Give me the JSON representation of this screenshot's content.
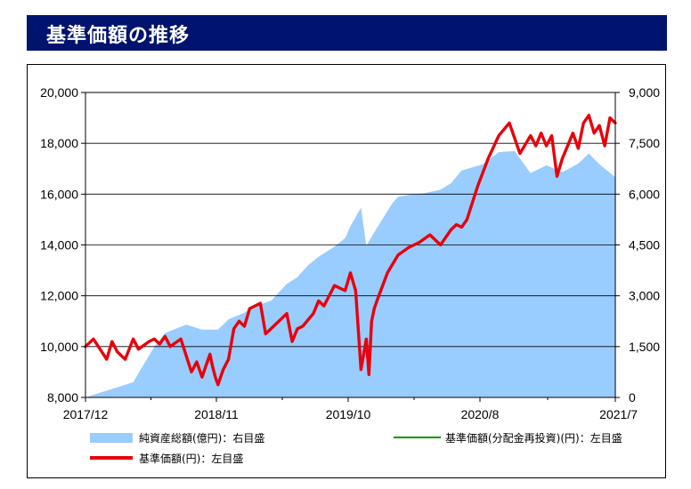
{
  "header": {
    "title": "基準価額の推移"
  },
  "chart_data": {
    "type": "line",
    "x_tick_labels": [
      "2017/12",
      "2018/11",
      "2019/10",
      "2020/8",
      "2021/7"
    ],
    "y_left": {
      "ticks": [
        8000,
        10000,
        12000,
        14000,
        16000,
        18000,
        20000
      ],
      "tick_labels": [
        "8,000",
        "10,000",
        "12,000",
        "14,000",
        "16,000",
        "18,000",
        "20,000"
      ],
      "range": [
        8000,
        20000
      ]
    },
    "y_right": {
      "ticks": [
        0,
        1500,
        3000,
        4500,
        6000,
        7500,
        9000
      ],
      "tick_labels": [
        "0",
        "1,500",
        "3,000",
        "4,500",
        "6,000",
        "7,500",
        "9,000"
      ],
      "range": [
        0,
        9000
      ]
    },
    "grid": true,
    "legend_position": "bottom",
    "series": [
      {
        "name": "純資産総額(億円)：右目盛",
        "axis": "right",
        "type": "area",
        "color": "#99ccff",
        "x": [
          0,
          0.03,
          0.09,
          0.13,
          0.15,
          0.19,
          0.22,
          0.25,
          0.27,
          0.3,
          0.32,
          0.35,
          0.38,
          0.4,
          0.42,
          0.44,
          0.47,
          0.49,
          0.5,
          0.52,
          0.53,
          0.55,
          0.58,
          0.59,
          0.62,
          0.64,
          0.67,
          0.69,
          0.71,
          0.75,
          0.78,
          0.81,
          0.84,
          0.87,
          0.9,
          0.93,
          0.95,
          0.97,
          1.0
        ],
        "values": [
          0,
          150,
          450,
          1500,
          1900,
          2150,
          2000,
          2000,
          2300,
          2500,
          2700,
          2850,
          3350,
          3550,
          3900,
          4150,
          4450,
          4700,
          5050,
          5600,
          4480,
          5000,
          5750,
          5920,
          6000,
          6030,
          6130,
          6320,
          6700,
          6880,
          7240,
          7270,
          6620,
          6850,
          6650,
          6900,
          7200,
          6880,
          6500
        ]
      },
      {
        "name": "基準価額(分配金再投資)(円)：左目盛",
        "axis": "left",
        "type": "line",
        "color": "#009900",
        "x": [],
        "values": []
      },
      {
        "name": "基準価額(円)：左目盛",
        "axis": "left",
        "type": "line",
        "color": "#e8000a",
        "x": [
          0,
          0.015,
          0.04,
          0.05,
          0.06,
          0.075,
          0.09,
          0.1,
          0.12,
          0.13,
          0.14,
          0.15,
          0.16,
          0.18,
          0.2,
          0.21,
          0.22,
          0.235,
          0.24,
          0.245,
          0.25,
          0.26,
          0.27,
          0.275,
          0.28,
          0.29,
          0.3,
          0.31,
          0.33,
          0.34,
          0.36,
          0.38,
          0.39,
          0.4,
          0.41,
          0.43,
          0.44,
          0.45,
          0.47,
          0.49,
          0.5,
          0.51,
          0.52,
          0.53,
          0.535,
          0.54,
          0.545,
          0.55,
          0.57,
          0.59,
          0.61,
          0.63,
          0.65,
          0.67,
          0.69,
          0.7,
          0.71,
          0.72,
          0.74,
          0.76,
          0.78,
          0.8,
          0.82,
          0.84,
          0.85,
          0.86,
          0.87,
          0.88,
          0.89,
          0.9,
          0.92,
          0.93,
          0.94,
          0.95,
          0.96,
          0.97,
          0.98,
          0.99,
          1.0
        ],
        "values": [
          10000,
          10300,
          9500,
          10200,
          9800,
          9500,
          10300,
          9900,
          10200,
          10300,
          10100,
          10400,
          10000,
          10300,
          9000,
          9400,
          8800,
          9700,
          9200,
          8800,
          8500,
          9100,
          9500,
          10100,
          10700,
          11000,
          10800,
          11500,
          11700,
          10500,
          10900,
          11300,
          10200,
          10700,
          10800,
          11300,
          11800,
          11600,
          12400,
          12200,
          12900,
          12200,
          9100,
          10300,
          8900,
          11000,
          11500,
          11800,
          12900,
          13600,
          13900,
          14100,
          14400,
          14000,
          14600,
          14800,
          14700,
          15000,
          16300,
          17400,
          18300,
          18800,
          17600,
          18300,
          17900,
          18400,
          17900,
          18300,
          16700,
          17400,
          18400,
          17800,
          18800,
          19100,
          18400,
          18700,
          17900,
          19000,
          18800
        ]
      }
    ]
  },
  "colors": {
    "title_bg": "#00136e",
    "nav_area": "#99ccff",
    "nav_line": "#e8000a",
    "reinvest_line": "#009900"
  }
}
